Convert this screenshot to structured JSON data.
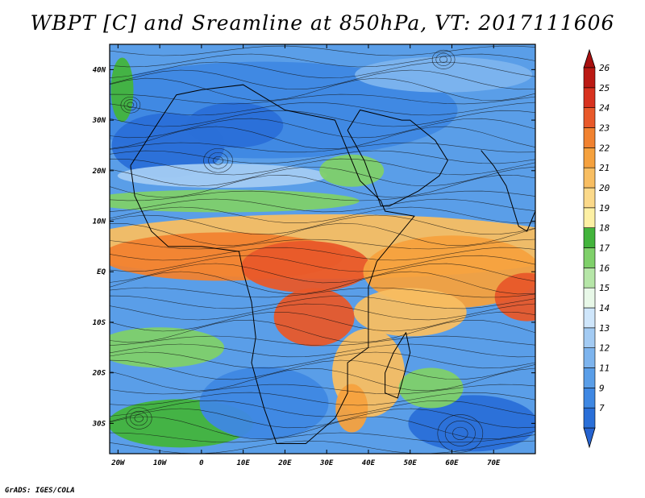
{
  "title": "WBPT [C] and Sreamline at 850hPa, VT: 2017111606",
  "footer": "GrADS: IGES/COLA",
  "map": {
    "projection": "latlon",
    "lon_range": [
      -22,
      80
    ],
    "lat_range": [
      -36,
      45
    ],
    "x_ticks": [
      "20W",
      "10W",
      "0",
      "10E",
      "20E",
      "30E",
      "40E",
      "50E",
      "60E",
      "70E"
    ],
    "x_tick_lons": [
      -20,
      -10,
      0,
      10,
      20,
      30,
      40,
      50,
      60,
      70
    ],
    "y_ticks": [
      "30S",
      "20S",
      "10S",
      "EQ",
      "10N",
      "20N",
      "30N",
      "40N"
    ],
    "y_tick_lats": [
      -30,
      -20,
      -10,
      0,
      10,
      20,
      30,
      40
    ]
  },
  "colorbar": {
    "labels": [
      "7",
      "9",
      "11",
      "12",
      "13",
      "14",
      "15",
      "16",
      "17",
      "18",
      "19",
      "20",
      "21",
      "22",
      "23",
      "24",
      "25",
      "26"
    ],
    "colors": [
      "#2a6fd8",
      "#3f88e3",
      "#5a9ee8",
      "#7db4ee",
      "#a3cbf3",
      "#cfe6fb",
      "#e8f8e8",
      "#b6e6a8",
      "#7fd06a",
      "#43b43c",
      "#fdf0a4",
      "#fbd98a",
      "#f8be62",
      "#f5a13e",
      "#f18230",
      "#e8592a",
      "#d8321f",
      "#bb1a14"
    ],
    "under_color": "#2663d0",
    "over_color": "#a81010"
  }
}
